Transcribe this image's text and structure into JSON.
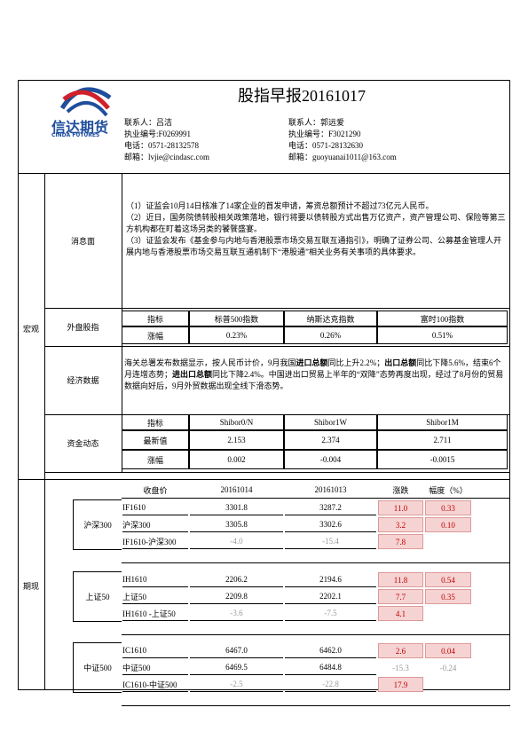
{
  "header": {
    "title": "股指早报20161017",
    "logo_text": "信达期货",
    "logo_subtext": "CINDA FUTURES",
    "contacts": [
      {
        "name": "联系人：吕洁",
        "license": "执业编号:F0269991",
        "phone": "电话：0571-28132578",
        "email": "邮箱：lvjie@cindasc.com"
      },
      {
        "name": "联系人：郭远爱",
        "license": "执业编号：F3021290",
        "phone": "电话：0571-28132630",
        "email": "邮箱：guoyuanai1011@163.com"
      }
    ]
  },
  "macro": {
    "label": "宏观",
    "news": {
      "label": "消息面",
      "paragraphs": [
        "（1）证监会10月14日核准了14家企业的首发申请，筹资总额预计不超过73亿元人民币。",
        "（2）近日，国务院债转股相关政策落地，银行将要以债转股方式出售万亿资产，资产管理公司、保险等第三方机构都在盯着这场另类的饕餮盛宴。",
        "（3）证监会发布《基金参与内地与香港股票市场交易互联互通指引》，明确了证券公司、公募基金管理人开展内地与香港股票市场交易互联互通机制下“港股通”相关业务有关事项的具体要求。"
      ]
    },
    "overseas": {
      "label": "外盘股指",
      "headers": [
        "指标",
        "标普500指数",
        "纳斯达克指数",
        "富时100指数"
      ],
      "rows": [
        [
          "涨幅",
          "0.23%",
          "0.26%",
          "0.51%"
        ]
      ]
    },
    "economy": {
      "label": "经济数据",
      "segments": [
        {
          "text": "海关总署发布数据显示，按人民币计价，9月我国",
          "bold": false
        },
        {
          "text": "进口总额",
          "bold": true
        },
        {
          "text": "同比上升2.2%；",
          "bold": false
        },
        {
          "text": "出口总额",
          "bold": true
        },
        {
          "text": "同比下降5.6%，结束6个月连增态势；",
          "bold": false
        },
        {
          "text": "进出口总额",
          "bold": true
        },
        {
          "text": "同比下降2.4%。中国进出口贸易上半年的“双降”态势再度出现，经过了8月份的贸易数据向好后，9月外贸数据出现全线下滑态势。",
          "bold": false
        }
      ]
    },
    "funds": {
      "label": "资金动态",
      "headers": [
        "指标",
        "Shibor0/N",
        "Shibor1W",
        "Shibor1M"
      ],
      "rows": [
        [
          "最新值",
          "2.153",
          "2.374",
          "2.711"
        ],
        [
          "涨幅",
          "0.002",
          "-0.004",
          "-0.0015"
        ]
      ]
    }
  },
  "futures": {
    "label": "期现",
    "headers": [
      "收盘价",
      "20161014",
      "20161013",
      "涨跌",
      "幅度（%）"
    ],
    "groups": [
      {
        "label": "沪深300",
        "rows": [
          [
            "IF1610",
            "3301.8",
            "3287.2",
            "11.0",
            "0.33"
          ],
          [
            "沪深300",
            "3305.8",
            "3302.6",
            "3.2",
            "0.10"
          ],
          [
            "IF1610-沪深300",
            "-4.0",
            "-15.4",
            "7.8"
          ]
        ]
      },
      {
        "label": "上证50",
        "rows": [
          [
            "IH1610",
            "2206.2",
            "2194.6",
            "11.8",
            "0.54"
          ],
          [
            "上证50",
            "2209.8",
            "2202.1",
            "7.7",
            "0.35"
          ],
          [
            "IH1610 -上证50",
            "-3.6",
            "-7.5",
            "4.1"
          ]
        ]
      },
      {
        "label": "中证500",
        "rows": [
          [
            "IC1610",
            "6467.0",
            "6462.0",
            "2.6",
            "0.04"
          ],
          [
            "中证500",
            "6469.5",
            "6484.8",
            "-15.3",
            "-0.24"
          ],
          [
            "IC1610-中证500",
            "-2.5",
            "-22.8",
            "17.9"
          ]
        ]
      }
    ]
  }
}
